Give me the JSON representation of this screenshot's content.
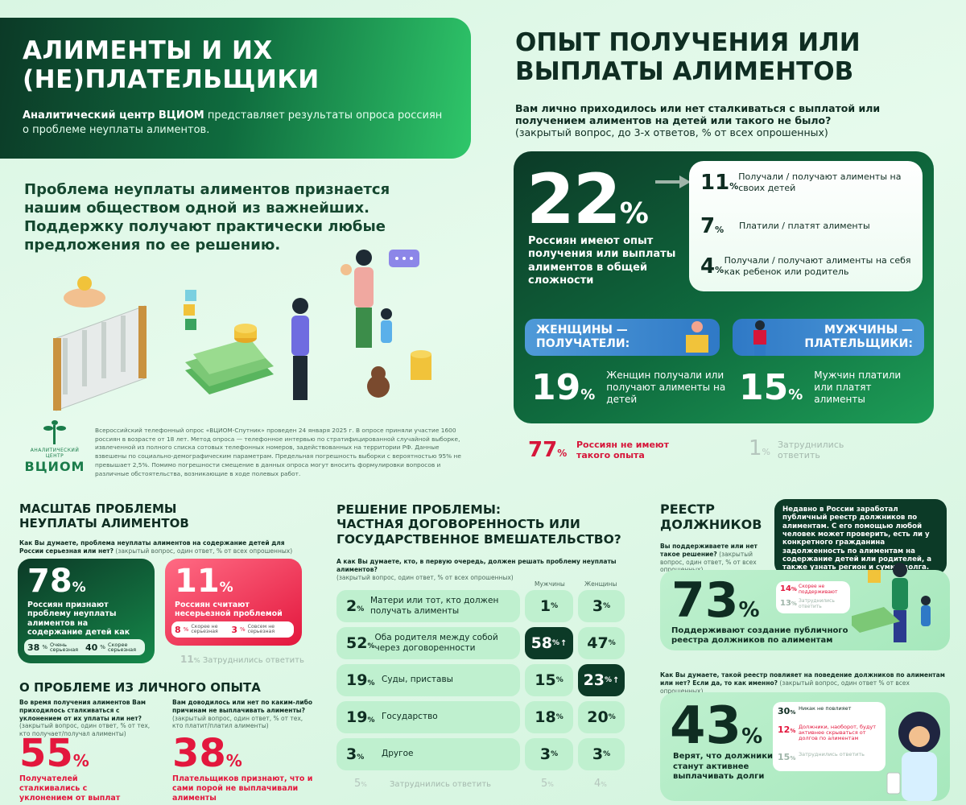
{
  "hero": {
    "title_line1": "АЛИМЕНТЫ И ИХ",
    "title_line2": "(НЕ)ПЛАТЕЛЬЩИКИ",
    "brand": "Аналитический центр ВЦИОМ",
    "desc": " представляет результаты опроса россиян о проблеме неуплаты алиментов."
  },
  "lead": "Проблема неуплаты алиментов признается нашим обществом одной из важнейших. Поддержку получают практически любые предложения по ее решению.",
  "logo": {
    "small": "АНАЛИТИЧЕСКИЙ ЦЕНТР",
    "big": "ВЦИОМ"
  },
  "methodology": "Всероссийский телефонный опрос «ВЦИОМ-Спутник» проведен 24 января 2025 г. В опросе приняли участие 1600 россиян в возрасте от 18 лет. Метод опроса — телефонное интервью по стратифицированной случайной выборке, извлеченной из полного списка сотовых телефонных номеров, задействованных на территории РФ. Данные взвешены по социально-демографическим параметрам. Предельная погрешность выборки с вероятностью 95% не превышает 2,5%. Помимо погрешности смещение в данных опроса могут вносить формулировки вопросов и различные обстоятельства, возникающие в ходе полевых работ.",
  "experience": {
    "title_line1": "ОПЫТ ПОЛУЧЕНИЯ ИЛИ",
    "title_line2": "ВЫПЛАТЫ АЛИМЕНТОВ",
    "question": "Вам лично приходилось или нет сталкиваться с выплатой или получением алиментов на детей или такого не было?",
    "question_note": "(закрытый вопрос, до 3-х ответов, % от всех опрошенных)",
    "total_value": "22",
    "total_text": "Россиян имеют опыт получения или выплаты алиментов в общей сложности",
    "breakdown": [
      {
        "value": "11",
        "label": "Получали / получают алименты на своих детей"
      },
      {
        "value": "7",
        "label": "Платили / платят алименты"
      },
      {
        "value": "4",
        "label": "Получали / получают алименты на себя как ребенок или родитель"
      }
    ],
    "women_pill": "ЖЕНЩИНЫ — ПОЛУЧАТЕЛИ:",
    "men_pill": "МУЖЧИНЫ — ПЛАТЕЛЬЩИКИ:",
    "women_value": "19",
    "women_text": "Женщин получали или получают алименты на детей",
    "men_value": "15",
    "men_text": "Мужчин платили или платят алименты",
    "no_value": "77",
    "no_text": "Россиян не имеют такого опыта",
    "diff_value": "1",
    "diff_text": "Затруднились ответить"
  },
  "scale": {
    "title_line1": "МАСШТАБ ПРОБЛЕМЫ",
    "title_line2": "НЕУПЛАТЫ АЛИМЕНТОВ",
    "question": "Как Вы думаете, проблема неуплаты алиментов на содержание детей для России серьезная или нет?",
    "question_note": " (закрытый вопрос, один ответ, % от всех опрошенных)",
    "serious_value": "78",
    "serious_text": "Россиян признают проблему неуплаты алиментов на содержание детей как серьезную для страны",
    "very_value": "38",
    "very_label": "Очень серьезная",
    "rather_value": "40",
    "rather_label": "Скорее серьезная",
    "not_value": "11",
    "not_text": "Россиян считают несерьезной проблемой",
    "rather_not_value": "8",
    "rather_not_label": "Скорее не серьезная",
    "not_at_all_value": "3",
    "not_at_all_label": "Совсем не серьезная",
    "diff_value": "11",
    "diff_label": "Затруднились ответить"
  },
  "personal": {
    "title": "О ПРОБЛЕМЕ ИЗ ЛИЧНОГО ОПЫТА",
    "q1": "Во время получения алиментов Вам приходилось сталкиваться с уклонением от их уплаты или нет?",
    "q1_note": " (закрытый вопрос, один ответ, % от тех, кто получает/получал алименты)",
    "v1": "55",
    "t1": "Получателей сталкивались с уклонением от выплат",
    "q2": "Вам доводилось или нет по каким-либо причинам не выплачивать алименты?",
    "q2_note": " (закрытый вопрос, один ответ, % от тех, кто платит/платил алименты)",
    "v2": "38",
    "t2": "Плательщиков признают, что и сами порой не выплачивали алименты"
  },
  "solution": {
    "title_line1": "РЕШЕНИЕ ПРОБЛЕМЫ:",
    "title_line2": "ЧАСТНАЯ ДОГОВОРЕННОСТЬ ИЛИ",
    "title_line3": "ГОСУДАРСТВЕННОЕ ВМЕШАТЕЛЬСТВО?",
    "question": "А как Вы думаете, кто, в первую очередь, должен решать проблему неуплаты алиментов?",
    "question_note": "(закрытый вопрос, один ответ, % от всех опрошенных)",
    "col_men": "Мужчины",
    "col_women": "Женщины",
    "rows": [
      {
        "total": "2",
        "label": "Матери или тот, кто должен получать алименты",
        "men": "1",
        "women": "3"
      },
      {
        "total": "52",
        "label": "Оба родителя между собой через договоренности",
        "men": "58",
        "women": "47"
      },
      {
        "total": "19",
        "label": "Суды, приставы",
        "men": "15",
        "women": "23"
      },
      {
        "total": "19",
        "label": "Государство",
        "men": "18",
        "women": "20"
      },
      {
        "total": "3",
        "label": "Другое",
        "men": "3",
        "women": "3"
      },
      {
        "total": "5",
        "label": "Затруднились ответить",
        "men": "5",
        "women": "4"
      }
    ]
  },
  "registry": {
    "title_line1": "РЕЕСТР",
    "title_line2": "ДОЛЖНИКОВ",
    "info": "Недавно в России заработал публичный реестр должников по алиментам. С его помощью любой человек может проверить, есть ли у конкретного гражданина задолженность по алиментам на содержание детей или родителей, а также узнать регион и сумму долга.",
    "q1": "Вы поддерживаете или нет такое решение?",
    "q1_note": " (закрытый вопрос, один ответ, % от всех опрошенных)",
    "support_value": "73",
    "support_text": "Поддерживают создание публичного реестра должников по алиментам",
    "rather_no_value": "14",
    "rather_no_label": "Скорее не поддерживают",
    "diff1_value": "13",
    "diff1_label": "Затруднились ответить",
    "q2": "Как Вы думаете, такой реестр повлияет на поведение должников по алиментам или нет? Если да, то как именно?",
    "q2_note": " (закрытый вопрос, один ответ % от всех опрошенных)",
    "active_value": "43",
    "active_text": "Верят, что должники станут активнее выплачивать долги",
    "none_value": "30",
    "none_label": "Никак не повлияет",
    "hide_value": "12",
    "hide_label": "Должники, наоборот, будут активнее скрываться от долгов по алиментам",
    "diff2_value": "15",
    "diff2_label": "Затруднились ответить"
  },
  "colors": {
    "dark": "#0c3a27",
    "green": "#1aa257",
    "red": "#e3173d",
    "blue": "#2f79c6",
    "mint": "#bff0cf"
  },
  "percent": "%"
}
